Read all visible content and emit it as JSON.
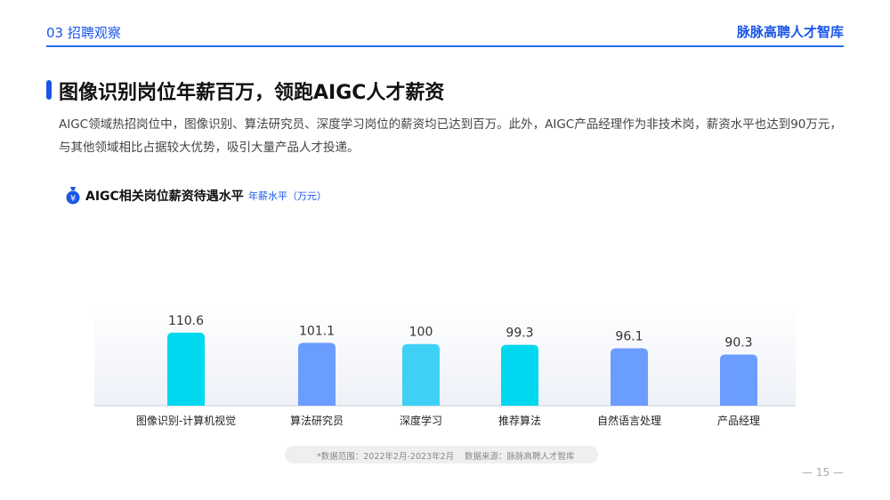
{
  "header": {
    "section": "03 招聘观察",
    "brand": "脉脉高聘人才智库"
  },
  "title": "图像识别岗位年薪百万，领跑AIGC人才薪资",
  "description": "AIGC领域热招岗位中，图像识别、算法研究员、深度学习岗位的薪资均已达到百万。此外，AIGC产品经理作为非技术岗，薪资水平也达到90万元，与其他领域相比占据较大优势，吸引大量产品人才投递。",
  "chart_heading": {
    "icon": "money-bag-icon",
    "title": "AIGC相关岗位薪资待遇水平",
    "unit": "年薪水平（万元）"
  },
  "chart_data": {
    "type": "bar",
    "title": "AIGC相关岗位薪资待遇水平",
    "ylabel": "年薪水平（万元）",
    "categories": [
      "图像识别-计算机视觉",
      "算法研究员",
      "深度学习",
      "推荐算法",
      "自然语言处理",
      "产品经理"
    ],
    "values": [
      110.6,
      101.1,
      100,
      99.3,
      96.1,
      90.3
    ],
    "value_labels": [
      "110.6",
      "101.1",
      "100",
      "99.3",
      "96.1",
      "90.3"
    ],
    "bar_colors": [
      "#00d8f0",
      "#6b9cff",
      "#3fd0f5",
      "#00d8f0",
      "#6b9cff",
      "#6b9cff"
    ],
    "grid": false,
    "legend": "none"
  },
  "footnote": {
    "range": "*数据范围：2022年2月-2023年2月",
    "source": "数据来源：脉脉高聘人才智库"
  },
  "page_number": "— 15 —"
}
